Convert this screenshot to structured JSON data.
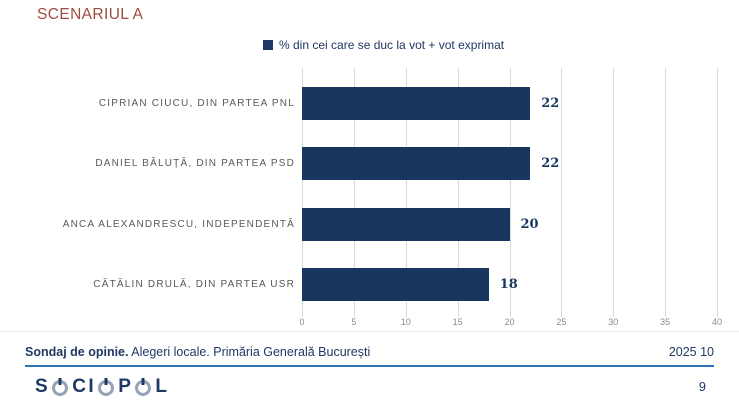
{
  "title": "SCENARIUL A",
  "legend": {
    "label": "% din cei care se duc la vot + vot exprimat"
  },
  "chart_data": {
    "type": "bar",
    "orientation": "horizontal",
    "title": "SCENARIUL A",
    "series_label": "% din cei care se duc la vot + vot exprimat",
    "categories": [
      "CIPRIAN CIUCU, DIN PARTEA PNL",
      "DANIEL BĂLUȚĂ, DIN PARTEA PSD",
      "ANCA ALEXANDRESCU, INDEPENDENTĂ",
      "CĂTĂLIN DRULĂ, DIN PARTEA USR"
    ],
    "values": [
      22,
      22,
      20,
      18
    ],
    "xlim": [
      0,
      40
    ],
    "xticks": [
      0,
      5,
      10,
      15,
      20,
      25,
      30,
      35,
      40
    ],
    "grid": "vertical",
    "legend_position": "top"
  },
  "colors": {
    "title": "#9e4b42",
    "navy": "#1f3864",
    "bar": "#17375e",
    "gridline": "#d9d9d9",
    "category_label": "#595959",
    "tick_label": "#8a8a8a",
    "divider": "#2e75b6",
    "logo_o": "#94a3b5"
  },
  "footer": {
    "source_bold": "Sondaj de opinie.",
    "source_rest": " Alegeri locale. Primăria Generală București",
    "date": "2025 10",
    "page_number": "9"
  },
  "logo": {
    "text": "SOCIOPOL"
  }
}
